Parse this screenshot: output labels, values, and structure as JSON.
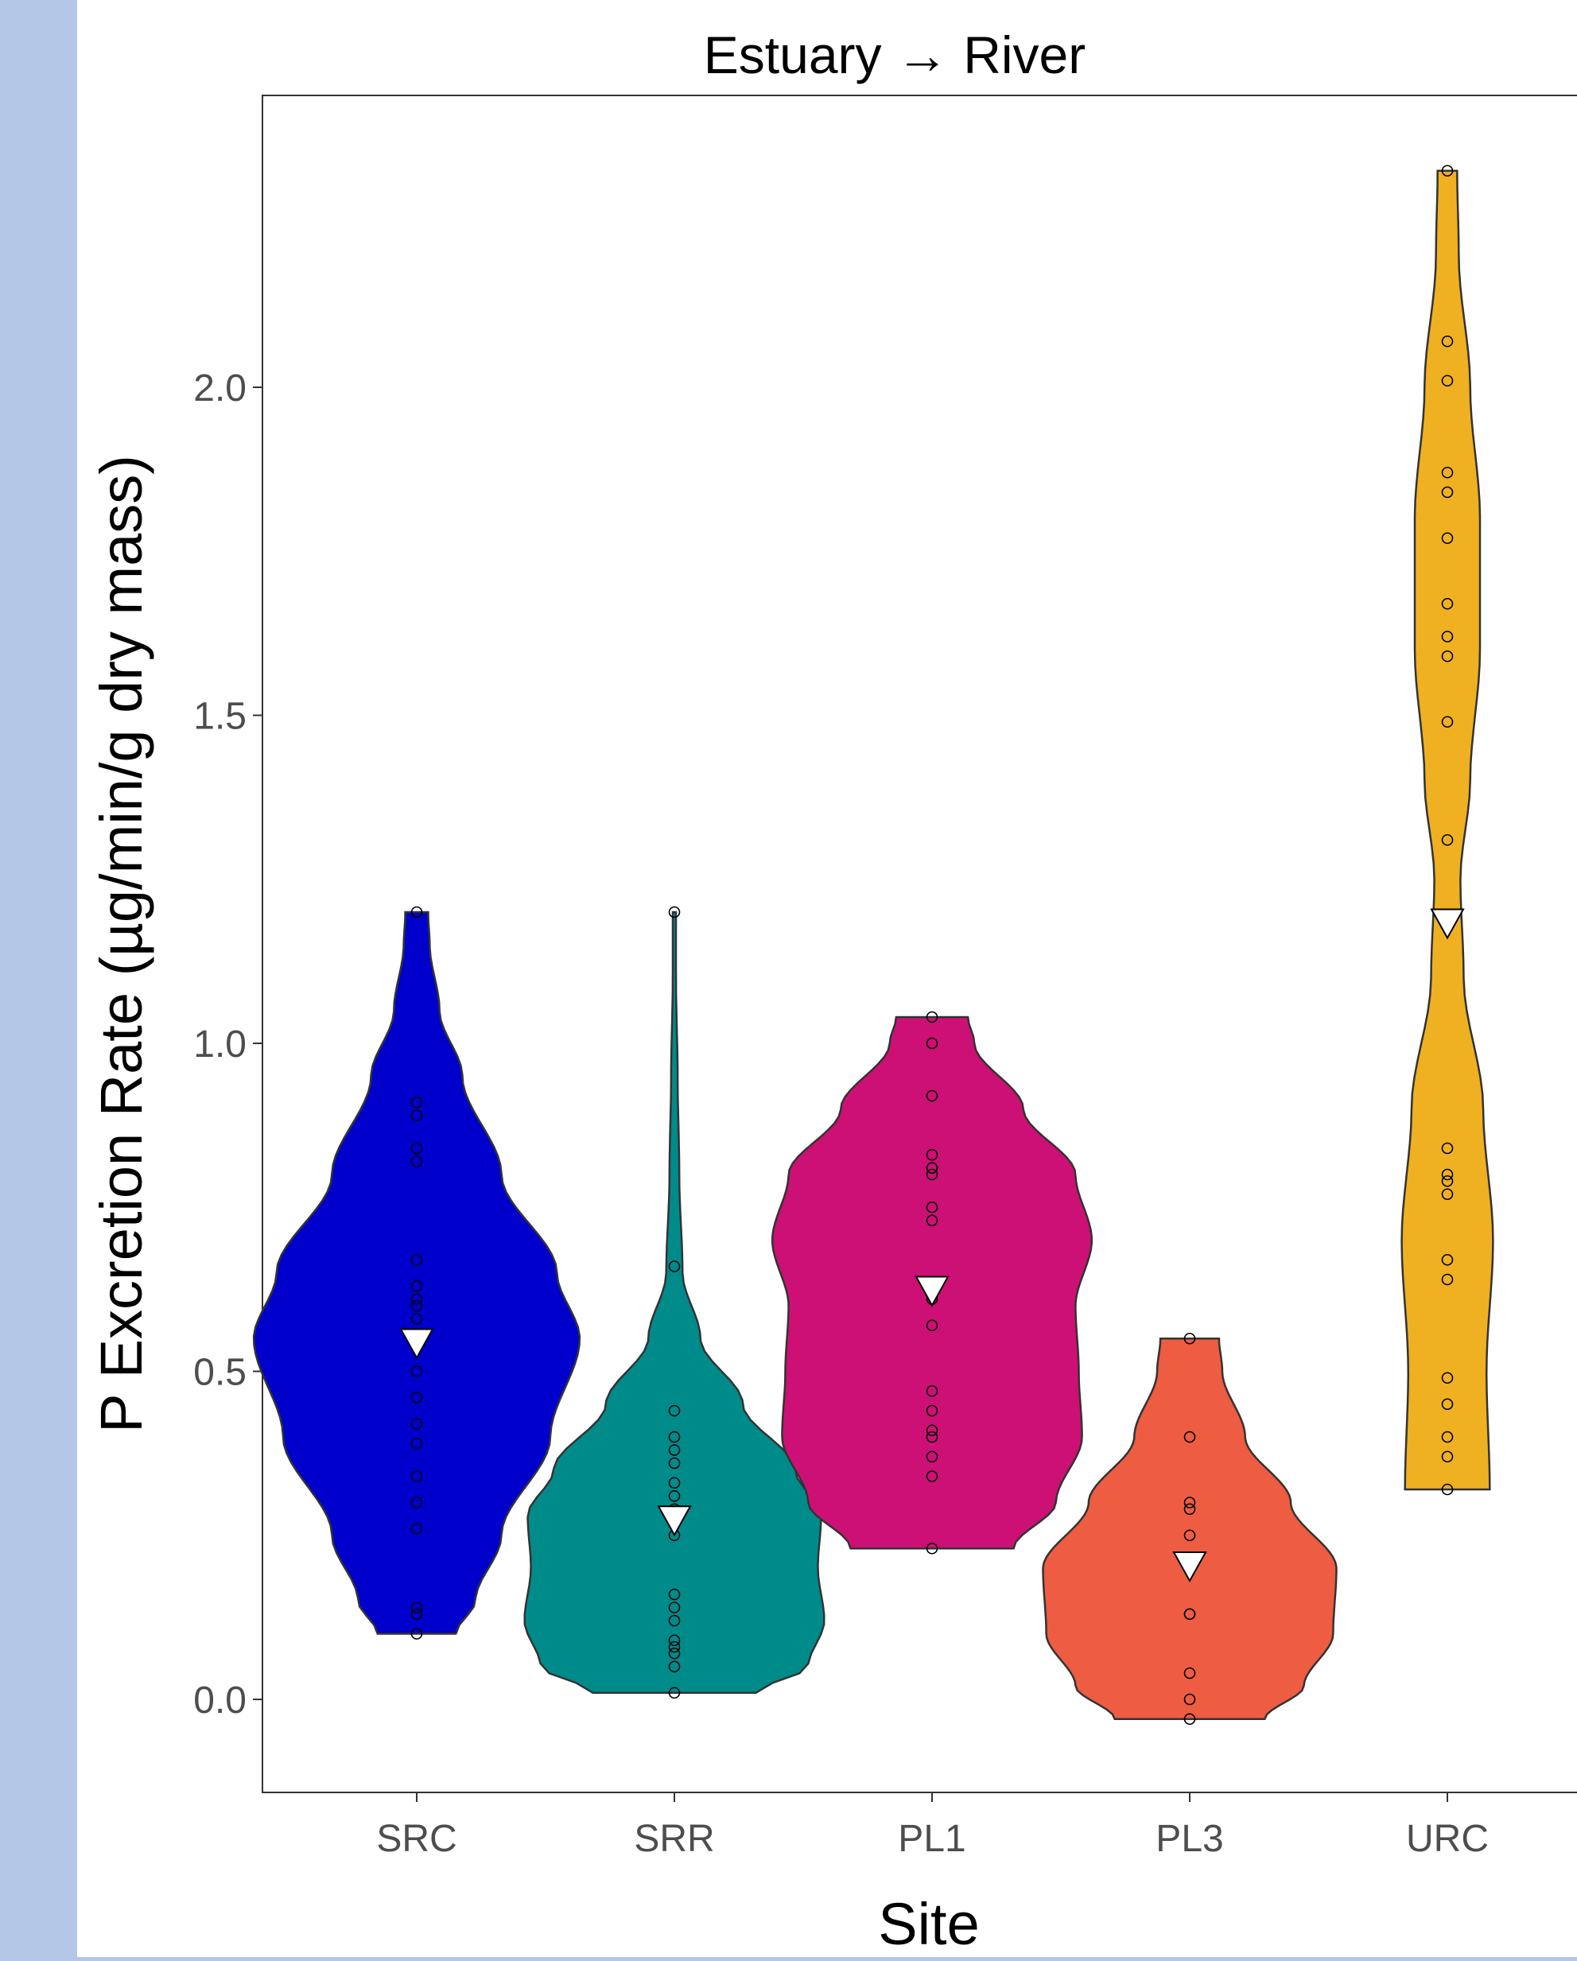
{
  "chart_data": {
    "type": "violin",
    "title": "Estuary → River",
    "xlabel": "Site",
    "ylabel": "P Excretion Rate (µg/min/g dry mass)",
    "ylim": [
      -0.14,
      2.45
    ],
    "yticks": [
      "0.0",
      "0.5",
      "1.0",
      "1.5",
      "2.0"
    ],
    "ytick_values": [
      0.0,
      0.5,
      1.0,
      1.5,
      2.0
    ],
    "categories": [
      "SRC",
      "SRR",
      "PL1",
      "PL3",
      "URC"
    ],
    "grid": false,
    "legend": "none",
    "series": [
      {
        "site": "SRC",
        "color": "#0000cd",
        "mean": 0.54,
        "range": [
          0.1,
          1.2
        ],
        "density": [
          [
            0.1,
            0.24
          ],
          [
            0.15,
            0.36
          ],
          [
            0.25,
            0.52
          ],
          [
            0.4,
            0.82
          ],
          [
            0.55,
            1.0
          ],
          [
            0.65,
            0.86
          ],
          [
            0.8,
            0.52
          ],
          [
            0.95,
            0.28
          ],
          [
            1.05,
            0.14
          ],
          [
            1.15,
            0.08
          ],
          [
            1.2,
            0.07
          ]
        ],
        "points": [
          0.1,
          0.13,
          0.14,
          0.26,
          0.3,
          0.34,
          0.39,
          0.42,
          0.46,
          0.5,
          0.54,
          0.58,
          0.6,
          0.61,
          0.63,
          0.67,
          0.82,
          0.84,
          0.89,
          0.91,
          1.2
        ]
      },
      {
        "site": "SRR",
        "color": "#008b8b",
        "mean": 0.27,
        "range": [
          0.01,
          1.2
        ],
        "density": [
          [
            0.01,
            0.5
          ],
          [
            0.05,
            0.82
          ],
          [
            0.12,
            0.92
          ],
          [
            0.2,
            0.88
          ],
          [
            0.28,
            0.9
          ],
          [
            0.35,
            0.74
          ],
          [
            0.45,
            0.42
          ],
          [
            0.55,
            0.16
          ],
          [
            0.65,
            0.05
          ],
          [
            0.8,
            0.03
          ],
          [
            0.95,
            0.02
          ],
          [
            1.1,
            0.01
          ],
          [
            1.2,
            0.01
          ]
        ],
        "points": [
          0.01,
          0.05,
          0.07,
          0.08,
          0.09,
          0.12,
          0.14,
          0.16,
          0.25,
          0.27,
          0.29,
          0.31,
          0.33,
          0.36,
          0.38,
          0.4,
          0.44,
          0.66,
          1.2
        ]
      },
      {
        "site": "PL1",
        "color": "#cd1075",
        "mean": 0.62,
        "range": [
          0.23,
          1.04
        ],
        "density": [
          [
            0.23,
            0.5
          ],
          [
            0.3,
            0.76
          ],
          [
            0.4,
            0.92
          ],
          [
            0.5,
            0.9
          ],
          [
            0.6,
            0.88
          ],
          [
            0.7,
            0.98
          ],
          [
            0.8,
            0.88
          ],
          [
            0.9,
            0.56
          ],
          [
            1.0,
            0.26
          ],
          [
            1.04,
            0.22
          ]
        ],
        "points": [
          0.23,
          0.34,
          0.37,
          0.4,
          0.41,
          0.44,
          0.47,
          0.57,
          0.61,
          0.73,
          0.75,
          0.8,
          0.81,
          0.81,
          0.83,
          0.92,
          1.0,
          1.04
        ]
      },
      {
        "site": "PL3",
        "color": "#ee5c42",
        "mean": 0.2,
        "range": [
          -0.03,
          0.55
        ],
        "density": [
          [
            -0.03,
            0.46
          ],
          [
            0.02,
            0.7
          ],
          [
            0.1,
            0.88
          ],
          [
            0.2,
            0.9
          ],
          [
            0.3,
            0.62
          ],
          [
            0.4,
            0.34
          ],
          [
            0.5,
            0.2
          ],
          [
            0.55,
            0.18
          ]
        ],
        "points": [
          -0.03,
          0.0,
          0.04,
          0.13,
          0.13,
          0.25,
          0.29,
          0.3,
          0.4,
          0.55
        ]
      },
      {
        "site": "URC",
        "color": "#efb121",
        "mean": 1.18,
        "range": [
          0.32,
          2.33
        ],
        "density": [
          [
            0.32,
            0.26
          ],
          [
            0.5,
            0.24
          ],
          [
            0.7,
            0.28
          ],
          [
            0.9,
            0.22
          ],
          [
            1.1,
            0.1
          ],
          [
            1.25,
            0.08
          ],
          [
            1.4,
            0.14
          ],
          [
            1.6,
            0.2
          ],
          [
            1.8,
            0.2
          ],
          [
            2.0,
            0.14
          ],
          [
            2.2,
            0.07
          ],
          [
            2.33,
            0.06
          ]
        ],
        "points": [
          0.32,
          0.37,
          0.4,
          0.45,
          0.49,
          0.64,
          0.67,
          0.77,
          0.79,
          0.8,
          0.84,
          1.31,
          1.49,
          1.59,
          1.62,
          1.67,
          1.77,
          1.84,
          1.87,
          2.01,
          2.07,
          2.33
        ]
      }
    ]
  }
}
